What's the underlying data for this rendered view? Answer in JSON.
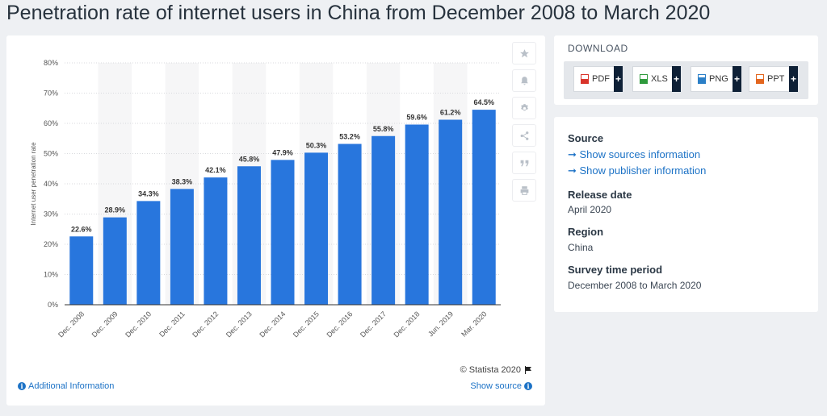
{
  "page": {
    "title": "Penetration rate of internet users in China from December 2008 to March 2020"
  },
  "chart_data": {
    "type": "bar",
    "title": "",
    "xlabel": "",
    "ylabel": "Internet user penetration rate",
    "categories": [
      "Dec. 2008",
      "Dec. 2009",
      "Dec. 2010",
      "Dec. 2011",
      "Dec. 2012",
      "Dec. 2013",
      "Dec. 2014",
      "Dec. 2015",
      "Dec. 2016",
      "Dec. 2017",
      "Dec. 2018",
      "Jun. 2019",
      "Mar. 2020"
    ],
    "values": [
      22.6,
      28.9,
      34.3,
      38.3,
      42.1,
      45.8,
      47.9,
      50.3,
      53.2,
      55.8,
      59.6,
      61.2,
      64.5
    ],
    "value_labels": [
      "22.6%",
      "28.9%",
      "34.3%",
      "38.3%",
      "42.1%",
      "45.8%",
      "47.9%",
      "50.3%",
      "53.2%",
      "55.8%",
      "59.6%",
      "61.2%",
      "64.5%"
    ],
    "ylim": [
      0,
      80
    ],
    "yticks": [
      "0%",
      "10%",
      "20%",
      "30%",
      "40%",
      "50%",
      "60%",
      "70%",
      "80%"
    ],
    "grid": true,
    "bar_color": "#2876dd"
  },
  "chart_card": {
    "copyright": "© Statista 2020",
    "additional_info": "Additional Information",
    "show_source": "Show source"
  },
  "tools": [
    "star-icon",
    "bell-icon",
    "gear-icon",
    "share-icon",
    "quote-icon",
    "print-icon"
  ],
  "download": {
    "title": "DOWNLOAD",
    "buttons": [
      {
        "label": "PDF",
        "color": "#d9342b"
      },
      {
        "label": "XLS",
        "color": "#2e9a3c"
      },
      {
        "label": "PNG",
        "color": "#2b7fc7"
      },
      {
        "label": "PPT",
        "color": "#e3661f"
      }
    ],
    "plus": "+"
  },
  "meta": {
    "source_head": "Source",
    "source_link1": "➞ Show sources information",
    "source_link2": "➞ Show publisher information",
    "release_head": "Release date",
    "release_val": "April 2020",
    "region_head": "Region",
    "region_val": "China",
    "survey_head": "Survey time period",
    "survey_val": "December 2008 to March 2020"
  }
}
